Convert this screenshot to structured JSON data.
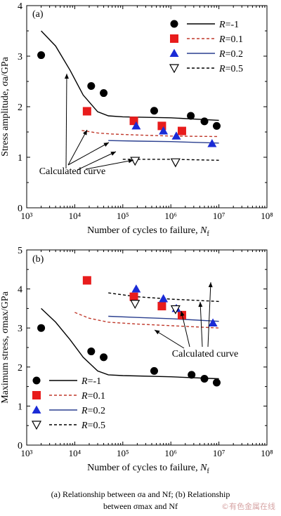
{
  "caption": {
    "line1": "(a) Relationship between σa and Nf; (b) Relationship",
    "line2": "between σmax and Nf"
  },
  "watermark": "©有色金属在线",
  "colors": {
    "r_neg1": "#000000",
    "r_01": "#e81c1c",
    "r_02": "#1a2bd6",
    "r_05": "#000000",
    "calc_01": "#c0392b",
    "calc_02": "#2a3f8f"
  },
  "chart_data": [
    {
      "type": "scatter",
      "panel": "(a)",
      "xlabel": "Number of cycles to failure, Nf",
      "ylabel": "Stress amplitude, σa/GPa",
      "xscale": "log",
      "xlim": [
        1000,
        100000000
      ],
      "ylim": [
        0,
        4
      ],
      "x_ticks": [
        "10³",
        "10⁴",
        "10⁵",
        "10⁶",
        "10⁷",
        "10⁸"
      ],
      "y_ticks": [
        "0",
        "1",
        "2",
        "3",
        "4"
      ],
      "legend": [
        "R=-1",
        "R=0.1",
        "R=0.2",
        "R=0.5"
      ],
      "annotation": "Calculated curve",
      "series": [
        {
          "name": "R=-1",
          "marker": "circle",
          "points": [
            [
              2000,
              3.02
            ],
            [
              22000,
              2.41
            ],
            [
              40000,
              2.27
            ],
            [
              450000,
              1.92
            ],
            [
              2600000,
              1.82
            ],
            [
              5000000,
              1.71
            ],
            [
              9000000,
              1.62
            ]
          ]
        },
        {
          "name": "R=0.1",
          "marker": "square",
          "points": [
            [
              18000,
              1.91
            ],
            [
              170000,
              1.72
            ],
            [
              650000,
              1.62
            ],
            [
              1700000,
              1.52
            ]
          ]
        },
        {
          "name": "R=0.2",
          "marker": "triangle-up",
          "points": [
            [
              190000,
              1.62
            ],
            [
              700000,
              1.52
            ],
            [
              1300000,
              1.42
            ],
            [
              7200000,
              1.27
            ]
          ]
        },
        {
          "name": "R=0.5",
          "marker": "triangle-down",
          "points": [
            [
              180000,
              0.93
            ],
            [
              1250000,
              0.9
            ]
          ]
        }
      ],
      "curves": [
        {
          "name": "R=-1",
          "style": "solid",
          "points": [
            [
              2000,
              3.5
            ],
            [
              4000,
              3.2
            ],
            [
              8000,
              2.72
            ],
            [
              15000,
              2.23
            ],
            [
              30000,
              1.9
            ],
            [
              50000,
              1.82
            ],
            [
              100000,
              1.8
            ],
            [
              1000000,
              1.78
            ],
            [
              10000000,
              1.73
            ]
          ]
        },
        {
          "name": "R=0.1",
          "style": "dashed",
          "points": [
            [
              14000,
              1.53
            ],
            [
              30000,
              1.48
            ],
            [
              60000,
              1.46
            ],
            [
              200000,
              1.44
            ],
            [
              1000000,
              1.42
            ],
            [
              10000000,
              1.41
            ]
          ]
        },
        {
          "name": "R=0.2",
          "style": "solid",
          "points": [
            [
              50000,
              1.33
            ],
            [
              200000,
              1.32
            ],
            [
              1000000,
              1.31
            ],
            [
              10000000,
              1.28
            ]
          ]
        },
        {
          "name": "R=0.5",
          "style": "dashed",
          "points": [
            [
              100000,
              0.96
            ],
            [
              1000000,
              0.96
            ],
            [
              10000000,
              0.94
            ]
          ]
        }
      ]
    },
    {
      "type": "scatter",
      "panel": "(b)",
      "xlabel": "Number of cycles to failure, Nf",
      "ylabel": "Maximum stress, σmax/GPa",
      "xscale": "log",
      "xlim": [
        1000,
        100000000
      ],
      "ylim": [
        0,
        5
      ],
      "x_ticks": [
        "10³",
        "10⁴",
        "10⁵",
        "10⁶",
        "10⁷",
        "10⁸"
      ],
      "y_ticks": [
        "0",
        "1",
        "2",
        "3",
        "4",
        "5"
      ],
      "legend": [
        "R=-1",
        "R=0.1",
        "R=0.2",
        "R=0.5"
      ],
      "annotation": "Calculated curve",
      "series": [
        {
          "name": "R=-1",
          "marker": "circle",
          "points": [
            [
              2000,
              3.0
            ],
            [
              22000,
              2.4
            ],
            [
              40000,
              2.25
            ],
            [
              450000,
              1.9
            ],
            [
              2700000,
              1.8
            ],
            [
              5000000,
              1.7
            ],
            [
              9000000,
              1.6
            ]
          ]
        },
        {
          "name": "R=0.1",
          "marker": "square",
          "points": [
            [
              18000,
              4.22
            ],
            [
              170000,
              3.8
            ],
            [
              650000,
              3.56
            ],
            [
              1700000,
              3.33
            ]
          ]
        },
        {
          "name": "R=0.2",
          "marker": "triangle-up",
          "points": [
            [
              190000,
              4.0
            ],
            [
              700000,
              3.75
            ],
            [
              1300000,
              3.5
            ],
            [
              7500000,
              3.13
            ]
          ]
        },
        {
          "name": "R=0.5",
          "marker": "triangle-down",
          "points": [
            [
              180000,
              3.62
            ],
            [
              1250000,
              3.48
            ]
          ]
        }
      ],
      "curves": [
        {
          "name": "R=-1",
          "style": "solid",
          "points": [
            [
              2000,
              3.5
            ],
            [
              4000,
              3.15
            ],
            [
              8000,
              2.7
            ],
            [
              15000,
              2.25
            ],
            [
              30000,
              1.9
            ],
            [
              50000,
              1.8
            ],
            [
              100000,
              1.78
            ],
            [
              1000000,
              1.75
            ],
            [
              10000000,
              1.7
            ]
          ]
        },
        {
          "name": "R=0.1",
          "style": "dashed",
          "points": [
            [
              10000,
              3.4
            ],
            [
              20000,
              3.25
            ],
            [
              50000,
              3.15
            ],
            [
              200000,
              3.1
            ],
            [
              1000000,
              3.06
            ],
            [
              10000000,
              3.0
            ]
          ]
        },
        {
          "name": "R=0.2",
          "style": "solid",
          "points": [
            [
              50000,
              3.3
            ],
            [
              200000,
              3.27
            ],
            [
              1000000,
              3.24
            ],
            [
              10000000,
              3.17
            ]
          ]
        },
        {
          "name": "R=0.5",
          "style": "dashed",
          "points": [
            [
              50000,
              3.9
            ],
            [
              200000,
              3.8
            ],
            [
              1000000,
              3.74
            ],
            [
              10000000,
              3.68
            ]
          ]
        }
      ]
    }
  ]
}
